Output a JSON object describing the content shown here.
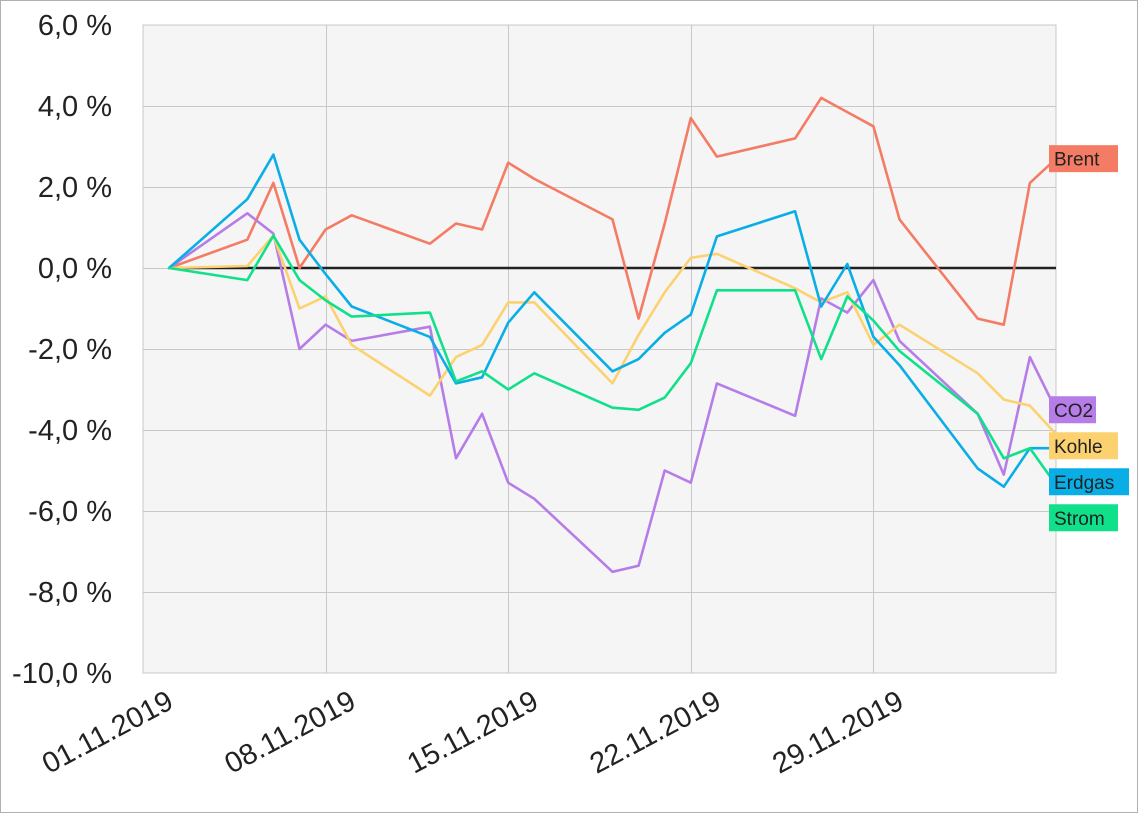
{
  "chart_data": {
    "type": "line",
    "title": "",
    "xlabel": "",
    "ylabel": "",
    "x_range": [
      "2019-10-31",
      "2019-12-05"
    ],
    "ylim": [
      -10,
      6
    ],
    "y_ticks": [
      6,
      4,
      2,
      0,
      -2,
      -4,
      -6,
      -8,
      -10
    ],
    "y_tick_labels": [
      "6,0 %",
      "4,0 %",
      "2,0 %",
      "0,0 %",
      "-2,0 %",
      "-4,0 %",
      "-6,0 %",
      "-8,0 %",
      "-10,0 %"
    ],
    "x_ticks": [
      "2019-11-07",
      "2019-11-14",
      "2019-11-21",
      "2019-11-28"
    ],
    "x_tick_labels": [
      "01.11.2019",
      "08.11.2019",
      "15.11.2019",
      "22.11.2019",
      "29.11.2019"
    ],
    "x_tick_label_dates": [
      "2019-11-01",
      "2019-11-08",
      "2019-11-15",
      "2019-11-22",
      "2019-11-29"
    ],
    "grid": true,
    "baseline": 0,
    "legend": "right, labels at line ends",
    "series": [
      {
        "name": "Brent",
        "color": "#f47c64",
        "x": [
          "2019-11-01",
          "2019-11-04",
          "2019-11-05",
          "2019-11-06",
          "2019-11-07",
          "2019-11-08",
          "2019-11-11",
          "2019-11-12",
          "2019-11-13",
          "2019-11-14",
          "2019-11-15",
          "2019-11-18",
          "2019-11-19",
          "2019-11-20",
          "2019-11-21",
          "2019-11-22",
          "2019-11-25",
          "2019-11-26",
          "2019-11-27",
          "2019-11-28",
          "2019-11-29",
          "2019-12-02",
          "2019-12-03",
          "2019-12-04",
          "2019-12-05"
        ],
        "values": [
          0.0,
          0.7,
          2.1,
          0.0,
          0.95,
          1.3,
          0.6,
          1.1,
          0.95,
          2.6,
          2.2,
          1.2,
          -1.25,
          1.1,
          3.7,
          2.75,
          3.2,
          4.2,
          3.85,
          3.5,
          1.2,
          -1.25,
          -1.4,
          2.1,
          2.7
        ]
      },
      {
        "name": "CO2",
        "color": "#b67de8",
        "x": [
          "2019-11-01",
          "2019-11-04",
          "2019-11-05",
          "2019-11-06",
          "2019-11-07",
          "2019-11-08",
          "2019-11-11",
          "2019-11-12",
          "2019-11-13",
          "2019-11-14",
          "2019-11-15",
          "2019-11-18",
          "2019-11-19",
          "2019-11-20",
          "2019-11-21",
          "2019-11-22",
          "2019-11-25",
          "2019-11-26",
          "2019-11-27",
          "2019-11-28",
          "2019-11-29",
          "2019-12-02",
          "2019-12-03",
          "2019-12-04",
          "2019-12-05"
        ],
        "values": [
          0.0,
          1.35,
          0.85,
          -2.0,
          -1.4,
          -1.8,
          -1.45,
          -4.7,
          -3.6,
          -5.3,
          -5.7,
          -7.5,
          -7.35,
          -5.0,
          -5.3,
          -2.85,
          -3.65,
          -0.75,
          -1.1,
          -0.3,
          -1.8,
          -3.6,
          -5.1,
          -2.2,
          -3.5
        ]
      },
      {
        "name": "Kohle",
        "color": "#fcd271",
        "x": [
          "2019-11-01",
          "2019-11-04",
          "2019-11-05",
          "2019-11-06",
          "2019-11-07",
          "2019-11-08",
          "2019-11-11",
          "2019-11-12",
          "2019-11-13",
          "2019-11-14",
          "2019-11-15",
          "2019-11-18",
          "2019-11-19",
          "2019-11-20",
          "2019-11-21",
          "2019-11-22",
          "2019-11-25",
          "2019-11-26",
          "2019-11-27",
          "2019-11-28",
          "2019-11-29",
          "2019-12-02",
          "2019-12-03",
          "2019-12-04",
          "2019-12-05"
        ],
        "values": [
          0.0,
          0.05,
          0.8,
          -1.0,
          -0.7,
          -1.9,
          -3.15,
          -2.2,
          -1.9,
          -0.85,
          -0.85,
          -2.85,
          -1.65,
          -0.6,
          0.25,
          0.35,
          -0.5,
          -0.85,
          -0.6,
          -1.9,
          -1.4,
          -2.6,
          -3.25,
          -3.4,
          -4.1
        ]
      },
      {
        "name": "Erdgas",
        "color": "#0aaee6",
        "x": [
          "2019-11-01",
          "2019-11-04",
          "2019-11-05",
          "2019-11-06",
          "2019-11-07",
          "2019-11-08",
          "2019-11-11",
          "2019-11-12",
          "2019-11-13",
          "2019-11-14",
          "2019-11-15",
          "2019-11-18",
          "2019-11-19",
          "2019-11-20",
          "2019-11-21",
          "2019-11-22",
          "2019-11-25",
          "2019-11-26",
          "2019-11-27",
          "2019-11-28",
          "2019-11-29",
          "2019-12-02",
          "2019-12-03",
          "2019-12-04",
          "2019-12-05"
        ],
        "values": [
          0.0,
          1.7,
          2.8,
          0.7,
          -0.15,
          -0.95,
          -1.7,
          -2.85,
          -2.7,
          -1.35,
          -0.6,
          -2.55,
          -2.25,
          -1.6,
          -1.15,
          0.78,
          1.4,
          -0.95,
          0.1,
          -1.7,
          -2.4,
          -4.95,
          -5.4,
          -4.45,
          -4.45
        ]
      },
      {
        "name": "Strom",
        "color": "#11e08b",
        "x": [
          "2019-11-01",
          "2019-11-04",
          "2019-11-05",
          "2019-11-06",
          "2019-11-07",
          "2019-11-08",
          "2019-11-11",
          "2019-11-12",
          "2019-11-13",
          "2019-11-14",
          "2019-11-15",
          "2019-11-18",
          "2019-11-19",
          "2019-11-20",
          "2019-11-21",
          "2019-11-22",
          "2019-11-25",
          "2019-11-26",
          "2019-11-27",
          "2019-11-28",
          "2019-11-29",
          "2019-12-02",
          "2019-12-03",
          "2019-12-04",
          "2019-12-05"
        ],
        "values": [
          0.0,
          -0.3,
          0.8,
          -0.3,
          -0.8,
          -1.2,
          -1.1,
          -2.8,
          -2.55,
          -3.0,
          -2.6,
          -3.45,
          -3.5,
          -3.2,
          -2.35,
          -0.55,
          -0.55,
          -2.25,
          -0.7,
          -1.3,
          -2.05,
          -3.6,
          -4.7,
          -4.45,
          -5.35
        ]
      }
    ],
    "label_colors": {
      "Brent": "#f47c64",
      "CO2": "#b67de8",
      "Kohle": "#fcd271",
      "Erdgas": "#0aaee6",
      "Strom": "#11e08b"
    }
  }
}
